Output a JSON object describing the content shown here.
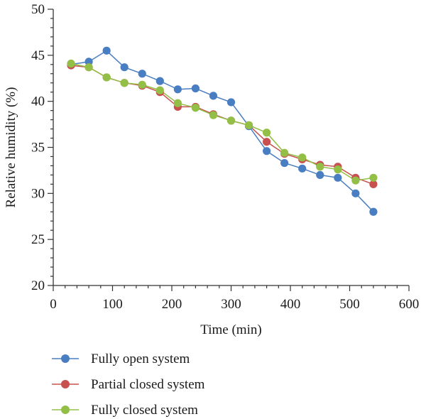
{
  "chart_data": {
    "type": "line",
    "title": "",
    "xlabel": "Time (min)",
    "ylabel": "Relative humidity (%)",
    "xlim": [
      0,
      600
    ],
    "ylim": [
      20,
      50
    ],
    "xticks": [
      0,
      100,
      200,
      300,
      400,
      500,
      600
    ],
    "yticks": [
      20,
      25,
      30,
      35,
      40,
      45,
      50
    ],
    "xtick_labels": [
      "0",
      "100",
      "200",
      "300",
      "400",
      "500",
      "600"
    ],
    "ytick_labels": [
      "20",
      "25",
      "30",
      "35",
      "40",
      "45",
      "50"
    ],
    "grid": false,
    "legend_position": "bottom",
    "x": [
      30,
      60,
      90,
      120,
      150,
      180,
      210,
      240,
      270,
      300,
      330,
      360,
      390,
      420,
      450,
      480,
      510,
      540
    ],
    "series": [
      {
        "name": "Fully open system",
        "color": "#4a7ec2",
        "values": [
          44.0,
          44.3,
          45.5,
          43.7,
          43.0,
          42.2,
          41.3,
          41.4,
          40.6,
          39.9,
          37.3,
          34.6,
          33.3,
          32.7,
          32.0,
          31.7,
          30.0,
          28.0
        ]
      },
      {
        "name": "Partial closed system",
        "color": "#c8504f",
        "values": [
          43.9,
          43.7,
          42.6,
          42.0,
          41.7,
          41.0,
          39.4,
          39.4,
          38.6,
          37.9,
          37.4,
          35.6,
          34.3,
          33.7,
          33.1,
          32.9,
          31.7,
          31.0
        ]
      },
      {
        "name": "Fully closed system",
        "color": "#93bf46",
        "values": [
          44.1,
          43.7,
          42.6,
          42.0,
          41.8,
          41.2,
          39.8,
          39.3,
          38.5,
          37.9,
          37.4,
          36.6,
          34.4,
          33.9,
          32.9,
          32.6,
          31.4,
          31.7
        ]
      }
    ]
  }
}
